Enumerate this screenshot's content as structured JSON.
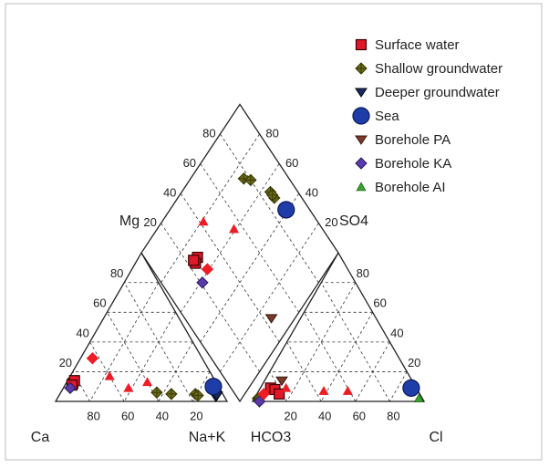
{
  "chart_data": {
    "type": "piper",
    "legend_position": "top-right",
    "grid": true,
    "ternary_cations": {
      "corner_labels": {
        "left": "Ca",
        "right": "Na+K",
        "top": "Mg"
      },
      "tick_labels_left": [
        "20",
        "40",
        "60",
        "80"
      ],
      "tick_labels_bottom": [
        "80",
        "60",
        "40",
        "20"
      ]
    },
    "ternary_anions": {
      "corner_labels": {
        "left": "HCO3",
        "right": "Cl",
        "top": "SO4"
      },
      "tick_labels_right": [
        "20",
        "40",
        "60",
        "80"
      ],
      "tick_labels_bottom": [
        "20",
        "40",
        "60",
        "80"
      ]
    },
    "diamond": {
      "tick_labels_left": [
        "20",
        "40",
        "60",
        "80"
      ],
      "tick_labels_right": [
        "80",
        "60",
        "40",
        "20"
      ]
    },
    "series": [
      {
        "name": "Surface water",
        "marker": "square",
        "color": "#e0182a",
        "edge": "#3a0000",
        "cations": [
          [
            84,
            12
          ],
          [
            82,
            14
          ],
          [
            85,
            11
          ]
        ],
        "anions": [
          [
            6,
            9
          ],
          [
            9,
            8
          ],
          [
            13,
            5
          ]
        ],
        "diamond": [
          [
            27,
            70
          ],
          [
            24,
            69
          ],
          [
            24,
            71
          ]
        ]
      },
      {
        "name": "Shallow groundwater",
        "marker": "plus-diamond",
        "color": "#6b6b1e",
        "edge": "#3a3a00",
        "cations": [
          [
            38,
            6
          ],
          [
            30,
            5
          ],
          [
            16,
            5
          ],
          [
            15,
            4
          ]
        ],
        "anions": [
          [
            2,
            2
          ],
          [
            3,
            2
          ]
        ],
        "diamond": [
          [
            77,
            73
          ],
          [
            80,
            69
          ],
          [
            86,
            55
          ],
          [
            86,
            51
          ],
          [
            86,
            53
          ]
        ]
      },
      {
        "name": "Deeper groundwater",
        "marker": "triangle-down",
        "color": "#1a2a6a",
        "edge": "#000000",
        "cations": [
          [
            5,
            3
          ],
          [
            4,
            4
          ]
        ],
        "anions": [],
        "diamond": []
      },
      {
        "name": "Sea",
        "marker": "circle",
        "color": "#1f3da8",
        "edge": "#0a1a55",
        "cations": [
          [
            3,
            10
          ]
        ],
        "anions": [
          [
            88,
            9
          ]
        ],
        "diamond": [
          [
            88,
            41
          ]
        ]
      },
      {
        "name": "Borehole PA",
        "marker": "triangle-down",
        "color": "#7a3a2a",
        "edge": "#3a1a10",
        "cations": [],
        "anions": [
          [
            10,
            14
          ]
        ],
        "diamond": [
          [
            44,
            12
          ]
        ]
      },
      {
        "name": "Borehole KA",
        "marker": "diamond",
        "color": "#5a3aa8",
        "edge": "#2a1a60",
        "cations": [
          [
            87,
            9
          ]
        ],
        "anions": [
          [
            4,
            0
          ]
        ],
        "diamond": [
          [
            21,
            59
          ]
        ]
      },
      {
        "name": "Borehole AI",
        "marker": "triangle-up",
        "color": "#3aa030",
        "edge": "#1a5010",
        "cations": [],
        "anions": [
          [
            96,
            2
          ]
        ],
        "diamond": []
      }
    ],
    "red_markers": {
      "color": "#ee1c24",
      "cations": [
        [
          "diamond",
          64,
          29
        ],
        [
          "triangle-up",
          60,
          17
        ],
        [
          "triangle-up",
          40,
          13
        ],
        [
          "triangle-up",
          53,
          9
        ]
      ],
      "anions": [
        [
          "triangle-up",
          38,
          7
        ],
        [
          "triangle-up",
          52,
          7
        ],
        [
          "diamond",
          4,
          5
        ],
        [
          "triangle-up",
          15,
          9
        ]
      ],
      "diamond": [
        [
          "diamond",
          28,
          61
        ],
        [
          "triangle-up",
          42,
          79
        ],
        [
          "triangle-up",
          55,
          61
        ]
      ]
    }
  }
}
